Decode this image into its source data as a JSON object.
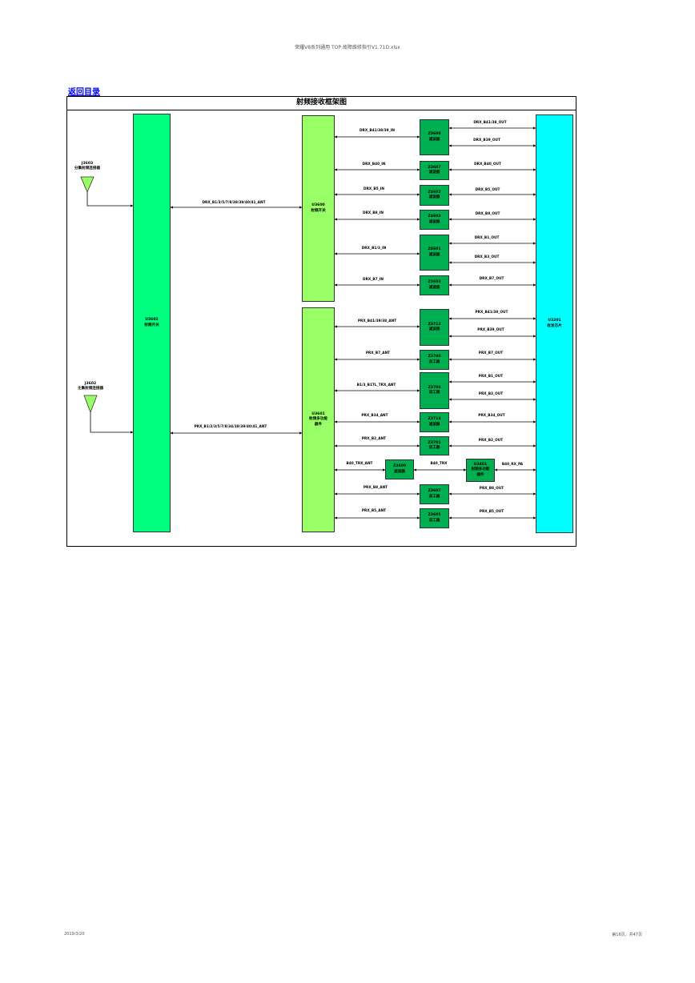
{
  "page": {
    "header": "荣耀V8系列通用 TOP 故障维修指引V1.71D.xlsx",
    "back_link": "返回目录",
    "footer_date": "2019/3/20",
    "footer_page": "第16页，共47页"
  },
  "diagram": {
    "title": "射频接收框架图",
    "antennas": {
      "div": {
        "ref": "J3603",
        "name": "分集射频连接器"
      },
      "main": {
        "ref": "J3602",
        "name": "主集射频连接器"
      }
    },
    "blocks": {
      "u3602": {
        "ref": "U3602",
        "name": "射频开关"
      },
      "u3600": {
        "ref": "U3600",
        "name": "射频开关"
      },
      "u3601": {
        "ref": "U3601",
        "name": "射频多功能",
        "name2": "器件"
      },
      "u3201": {
        "ref": "U3201",
        "name": "收发芯片"
      },
      "z3608": {
        "ref": "Z3608",
        "name": "滤波器"
      },
      "z3607": {
        "ref": "Z3607",
        "name": "滤波器"
      },
      "z4602": {
        "ref": "Z4602",
        "name": "滤波器"
      },
      "z4603": {
        "ref": "Z4603",
        "name": "滤波器"
      },
      "z4601": {
        "ref": "Z4601",
        "name": "滤波器"
      },
      "z3603": {
        "ref": "Z3603",
        "name": "滤波器"
      },
      "z3712": {
        "ref": "Z3712",
        "name": "滤波器"
      },
      "z3700": {
        "ref": "Z3700",
        "name": "双工器"
      },
      "z3706": {
        "ref": "Z3706",
        "name": "双工器"
      },
      "z3714": {
        "ref": "Z3714",
        "name": "滤波器"
      },
      "z3701": {
        "ref": "Z3701",
        "name": "双工器"
      },
      "z3600": {
        "ref": "Z3600",
        "name": "滤波器"
      },
      "u3401": {
        "ref": "U3401",
        "name": "射频多功能",
        "name2": "器件"
      },
      "z3607b": {
        "ref": "Z3607",
        "name": "双工器"
      },
      "z3605": {
        "ref": "Z3605",
        "name": "双工器"
      }
    },
    "signals": {
      "drx_ant": "DRX_B1/3/5/7/8/38/39/40/41_ANT",
      "prx_ant": "PRX_B1/2/3/5/7/8/34/38/39/40/41_ANT",
      "drx_b41_in": "DRX_B41/38/39_IN",
      "drx_b41_out": "DRX_B41/38_OUT",
      "drx_b39_out": "DRX_B39_OUT",
      "drx_b40_in": "DRX_B40_IN",
      "drx_b40_out": "DRX_B40_OUT",
      "drx_b5_in": "DRX_B5_IN",
      "drx_b5_out": "DRX_B5_OUT",
      "drx_b8_in": "DRX_B8_IN",
      "drx_b8_out": "DRX_B8_OUT",
      "drx_b13_in": "DRX_B1/3_IN",
      "drx_b1_out": "DRX_B1_OUT",
      "drx_b3_out": "DRX_B3_OUT",
      "drx_b7_in": "DRX_B7_IN",
      "drx_b7_out": "DRX_B7_OUT",
      "prx_b41_ant": "PRX_B41/39/38_ANT",
      "prx_b41_out": "PRX_B41/38_OUT",
      "prx_b39_out": "PRX_B39_OUT",
      "prx_b7_ant": "PRX_B7_ANT",
      "prx_b7_out": "PRX_B7_OUT",
      "b13_trx_ant": "B1/3_B1TL_TRX_ANT",
      "prx_b1_out": "PRX_B1_OUT",
      "prx_b3_out": "PRX_B3_OUT",
      "prx_b34_ant": "PRX_B34_ANT",
      "prx_b34_out": "PRX_B34_OUT",
      "prx_b2_ant": "PRX_B2_ANT",
      "prx_b2_out": "PRX_B2_OUT",
      "b40_trx_ant": "B40_TRX_ANT",
      "b40_trx": "B40_TRX",
      "b40_rx_pa": "B40_RX_PA",
      "prx_b8_ant": "PRX_B8_ANT",
      "prx_b8_out": "PRX_B8_OUT",
      "prx_b5_ant": "PRX_B5_ANT",
      "prx_b5_out": "PRX_B5_OUT"
    }
  }
}
